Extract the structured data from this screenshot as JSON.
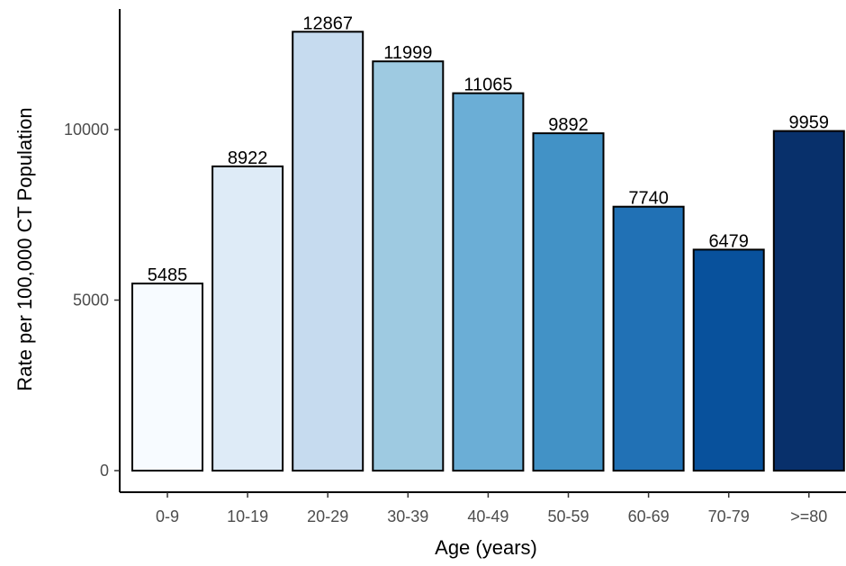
{
  "chart_data": {
    "type": "bar",
    "categories": [
      "0-9",
      "10-19",
      "20-29",
      "30-39",
      "40-49",
      "50-59",
      "60-69",
      "70-79",
      ">=80"
    ],
    "values": [
      5485,
      8922,
      12867,
      11999,
      11065,
      9892,
      7740,
      6479,
      9959
    ],
    "data_labels": [
      "5485",
      "8922",
      "12867",
      "11999",
      "11065",
      "9892",
      "7740",
      "6479",
      "9959"
    ],
    "colors": [
      "#f7fbff",
      "#deebf7",
      "#c6dbef",
      "#9ecae1",
      "#6baed6",
      "#4292c6",
      "#2171b5",
      "#08519c",
      "#08306b"
    ],
    "bar_outline": "#000000",
    "xlabel": "Age (years)",
    "ylabel": "Rate per 100,000 CT Population",
    "yticks": [
      0,
      5000,
      10000
    ],
    "ytick_labels": [
      "0",
      "5000",
      "10000"
    ],
    "ylim": [
      0,
      13000
    ],
    "grid": false,
    "legend": "none"
  }
}
